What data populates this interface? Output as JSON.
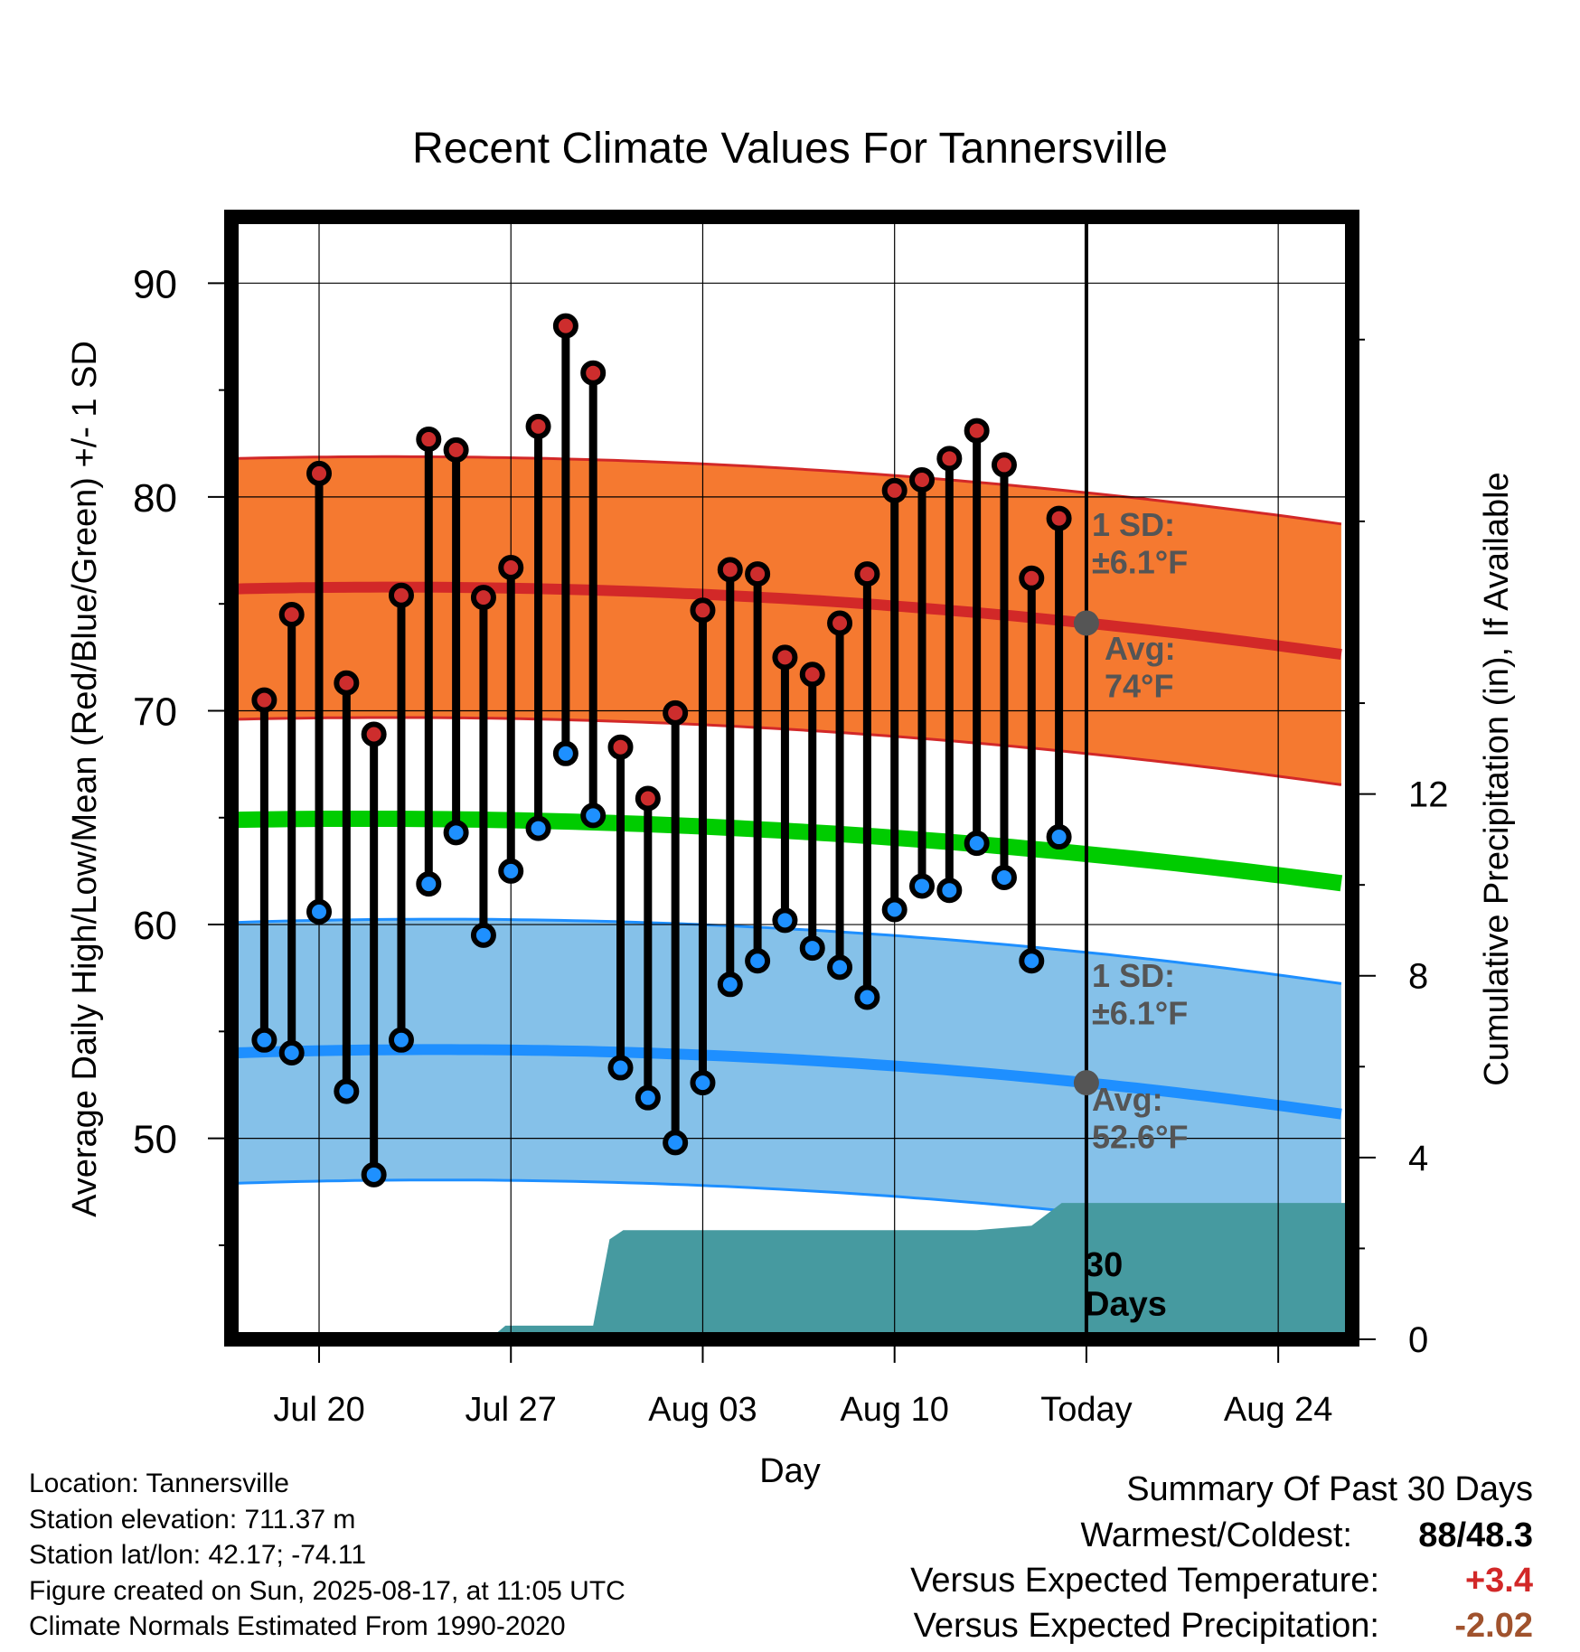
{
  "chart_data": {
    "type": "line",
    "title": "Recent Climate Values For Tannersville",
    "xlabel": "Day",
    "ylabel_left": "Average Daily High/Low/Mean (Red/Blue/Green) +/- 1 SD",
    "ylabel_right": "Cumulative Precipitation (in), If Available",
    "x_ticks": [
      "Jul 20",
      "Jul 27",
      "Aug 03",
      "Aug 10",
      "Today",
      "Aug 24"
    ],
    "x_tick_days": [
      20,
      27,
      34,
      41,
      48,
      55
    ],
    "xlim_days": [
      16.8,
      57.7
    ],
    "ylim_left": [
      40.6,
      93.1
    ],
    "y_ticks_left": [
      "50",
      "60",
      "70",
      "80",
      "90"
    ],
    "ylim_right": [
      0,
      24.7
    ],
    "y_ticks_right": [
      "0",
      "4",
      "8",
      "12"
    ],
    "today_day": 48,
    "daily": {
      "days": [
        18,
        19,
        20,
        21,
        22,
        23,
        24,
        25,
        26,
        27,
        28,
        29,
        30,
        31,
        32,
        33,
        34,
        35,
        36,
        37,
        38,
        39,
        40,
        41,
        42,
        43,
        44,
        45,
        46,
        47
      ],
      "high": [
        70.5,
        74.5,
        81.1,
        71.3,
        68.9,
        75.4,
        82.7,
        82.2,
        75.3,
        76.7,
        83.3,
        88.0,
        85.8,
        68.3,
        65.9,
        69.9,
        74.7,
        76.6,
        76.4,
        72.5,
        71.7,
        74.1,
        76.4,
        80.3,
        80.8,
        81.8,
        83.1,
        81.5,
        76.2,
        79.0
      ],
      "low": [
        54.6,
        54.0,
        60.6,
        52.2,
        48.3,
        54.6,
        61.9,
        64.3,
        59.5,
        62.5,
        64.5,
        68.0,
        65.1,
        53.3,
        51.9,
        49.8,
        52.6,
        57.2,
        58.3,
        60.2,
        58.9,
        58.0,
        56.6,
        60.7,
        61.8,
        61.6,
        63.8,
        62.2,
        58.3,
        64.1
      ]
    },
    "normals": {
      "days": [
        17,
        48,
        57.5
      ],
      "high_mean": [
        75.7,
        74.1,
        72.6
      ],
      "high_sd": 6.1,
      "low_mean": [
        54.0,
        52.6,
        51.1
      ],
      "low_sd": 6.1,
      "mean": [
        64.9,
        63.3,
        61.9
      ]
    },
    "precip": {
      "days": [
        17,
        26.2,
        26.8,
        30,
        30.6,
        31.1,
        32,
        38,
        40,
        44,
        46,
        47.1,
        57.5
      ],
      "cumulative": [
        0,
        0,
        0.3,
        0.3,
        2.2,
        2.4,
        2.4,
        2.4,
        2.4,
        2.4,
        2.5,
        3.0,
        3.0
      ]
    },
    "annotations": {
      "high_sd": [
        "1 SD:",
        "±6.1°F"
      ],
      "high_avg": [
        "Avg:",
        "74°F"
      ],
      "low_sd": [
        "1 SD:",
        "±6.1°F"
      ],
      "low_avg": [
        "Avg:",
        "52.6°F"
      ],
      "days": [
        "30",
        "Days"
      ]
    },
    "colors": {
      "high_band": "#f57930",
      "high_line": "#d22828",
      "low_band": "#85c1e9",
      "low_line": "#1e8fff",
      "mean_line": "#00cc00",
      "precip": "#469aa0",
      "high_marker": "#cd2d2d",
      "low_marker": "#1e90ff",
      "annotation": "#555555"
    }
  },
  "info": {
    "location": "Location: Tannersville",
    "elevation": "Station elevation: 711.37 m",
    "latlon": "Station lat/lon: 42.17; -74.11",
    "created": "Figure created on Sun, 2025-08-17, at 11:05 UTC",
    "normals": "Climate Normals Estimated From 1990-2020"
  },
  "summary": {
    "title": "Summary Of Past 30 Days",
    "warmest_coldest_label": "Warmest/Coldest:",
    "warmest": "88",
    "coldest": "48.3",
    "temp_label": "Versus Expected Temperature:",
    "temp_value": "+3.4",
    "temp_color": "#d22828",
    "precip_label": "Versus Expected Precipitation:",
    "precip_value": "-2.02",
    "precip_color": "#a0522d"
  }
}
